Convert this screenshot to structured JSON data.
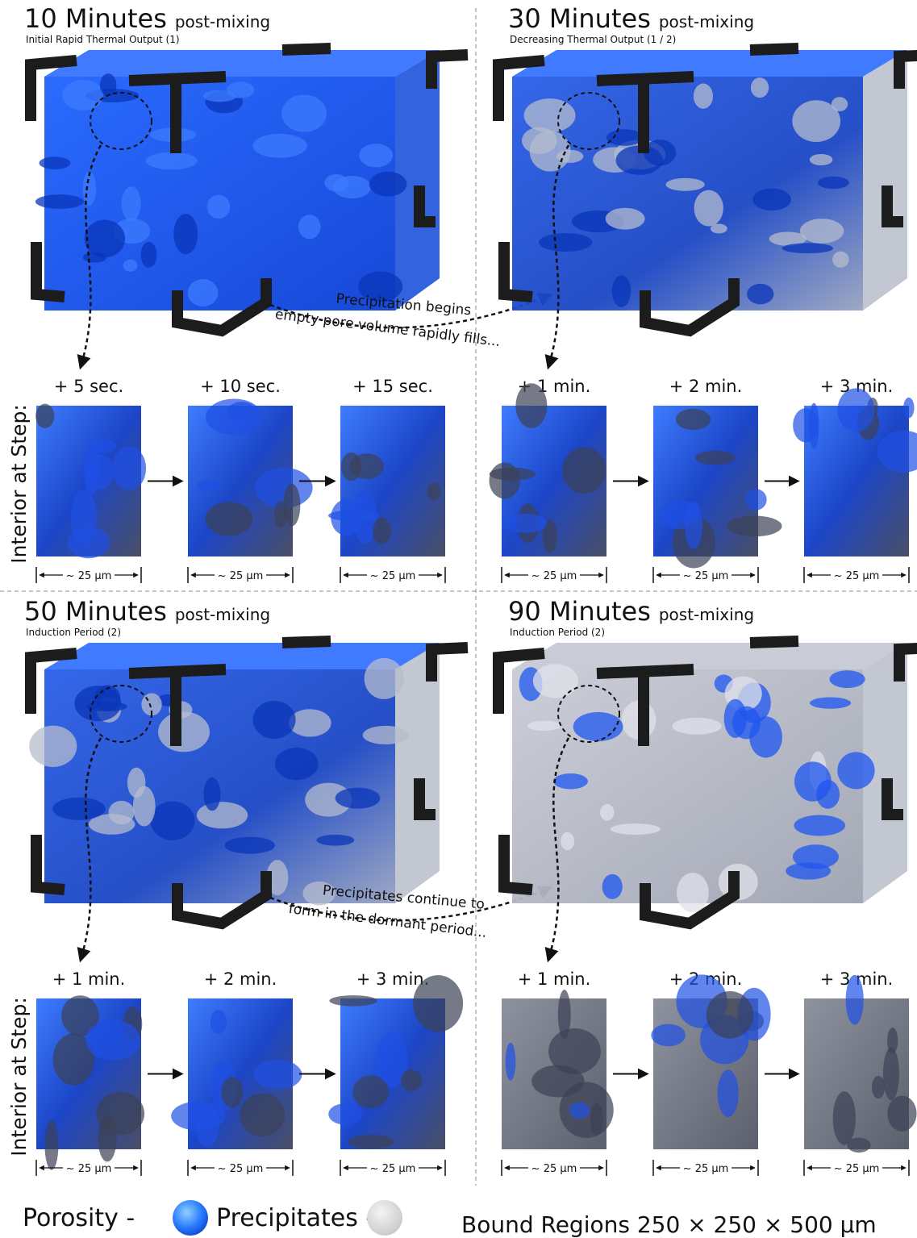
{
  "side_labels": [
    "Interior at Step:",
    "Interior at Step:"
  ],
  "panels": [
    {
      "title": "10 Minutes",
      "title_suffix": "post-mixing",
      "subtitle": "Initial Rapid Thermal Output (1)",
      "annotation": [
        "Precipitation begins",
        "empty pore volume rapidly fills..."
      ],
      "steps": [
        {
          "label": "+ 5 sec.",
          "scale": "~ 25 μm"
        },
        {
          "label": "+ 10 sec.",
          "scale": "~ 25 μm"
        },
        {
          "label": "+ 15 sec.",
          "scale": "~ 25 μm"
        }
      ]
    },
    {
      "title": "30 Minutes",
      "title_suffix": "post-mixing",
      "subtitle": "Decreasing Thermal Output (1 / 2)",
      "steps": [
        {
          "label": "+ 1 min.",
          "scale": "~ 25 μm"
        },
        {
          "label": "+ 2 min.",
          "scale": "~ 25 μm"
        },
        {
          "label": "+ 3 min.",
          "scale": "~ 25 μm"
        }
      ]
    },
    {
      "title": "50 Minutes",
      "title_suffix": "post-mixing",
      "subtitle": "Induction Period (2)",
      "annotation": [
        "Precipitates continue to",
        "form in the dormant period..."
      ],
      "steps": [
        {
          "label": "+ 1 min.",
          "scale": "~ 25 μm"
        },
        {
          "label": "+ 2 min.",
          "scale": "~ 25 μm"
        },
        {
          "label": "+ 3 min.",
          "scale": "~ 25 μm"
        }
      ]
    },
    {
      "title": "90 Minutes",
      "title_suffix": "post-mixing",
      "subtitle": "Induction Period (2)",
      "steps": [
        {
          "label": "+ 1 min.",
          "scale": "~ 25 μm"
        },
        {
          "label": "+ 2 min.",
          "scale": "~ 25 μm"
        },
        {
          "label": "+ 3 min.",
          "scale": "~ 25 μm"
        }
      ]
    }
  ],
  "legend": {
    "porosity": "Porosity -",
    "precipitates": "Precipitates -",
    "bounds": "Bound Regions 250 × 250 × 500 μm"
  }
}
